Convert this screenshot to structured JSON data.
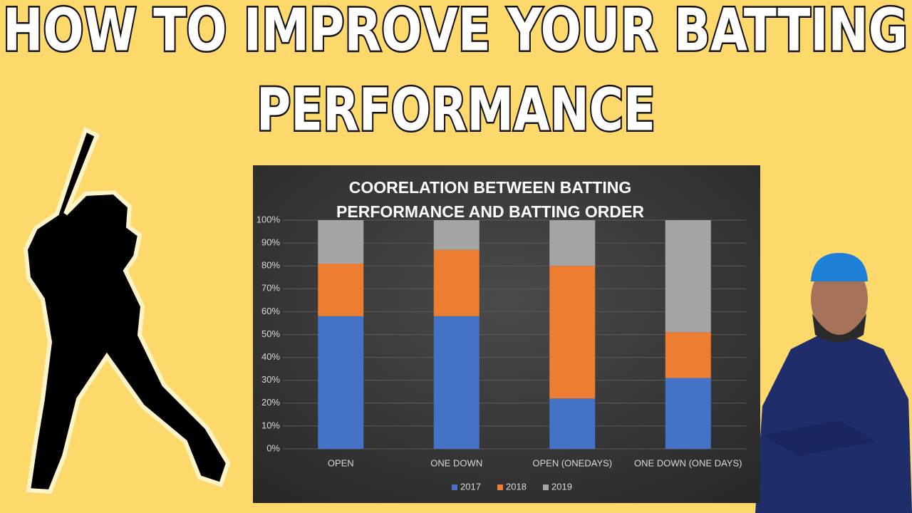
{
  "headline": [
    "HOW  TO IMPROVE YOUR BATTING",
    "PERFORMANCE"
  ],
  "chart_data": {
    "type": "bar",
    "stacked": true,
    "title": [
      "COORELATION  BETWEEN  BATTING",
      "PERFORMANCE  AND BATTING  ORDER"
    ],
    "categories": [
      "OPEN",
      "ONE DOWN",
      "OPEN (ONEDAYS)",
      "ONE DOWN (ONE DAYS)"
    ],
    "series": [
      {
        "name": "2017",
        "color": "#4472c4",
        "values": [
          58,
          58,
          22,
          31
        ]
      },
      {
        "name": "2018",
        "color": "#ed7d31",
        "values": [
          23,
          29,
          58,
          20
        ]
      },
      {
        "name": "2019",
        "color": "#a5a5a5",
        "values": [
          19,
          13,
          20,
          49
        ]
      }
    ],
    "ylim": [
      0,
      100
    ],
    "yticks": [
      {
        "value": 0,
        "label": "0%"
      },
      {
        "value": 10,
        "label": "10%"
      },
      {
        "value": 20,
        "label": "20%"
      },
      {
        "value": 30,
        "label": "30%"
      },
      {
        "value": 40,
        "label": "40%"
      },
      {
        "value": 50,
        "label": "50%"
      },
      {
        "value": 60,
        "label": "60%"
      },
      {
        "value": 70,
        "label": "70%"
      },
      {
        "value": 80,
        "label": "80%"
      },
      {
        "value": 90,
        "label": "90%"
      },
      {
        "value": 100,
        "label": "100%"
      }
    ],
    "grid": true,
    "legend": "bottom"
  }
}
